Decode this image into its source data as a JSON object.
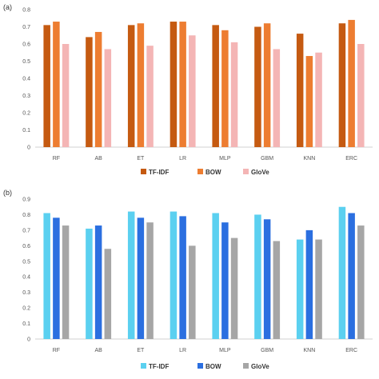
{
  "colors": {
    "a": [
      "#c55a11",
      "#ed7d31",
      "#f4b5b5"
    ],
    "b": [
      "#5bd0f0",
      "#2b6fe0",
      "#a6a6a6"
    ]
  },
  "chart_data": [
    {
      "type": "bar",
      "panel_label": "(a)",
      "categories": [
        "RF",
        "AB",
        "ET",
        "LR",
        "MLP",
        "GBM",
        "KNN",
        "ERC"
      ],
      "ylim": [
        0,
        0.8
      ],
      "yticks": [
        "0",
        "0.1",
        "0.2",
        "0.3",
        "0.4",
        "0.5",
        "0.6",
        "0.7",
        "0.8"
      ],
      "legend_position": "bottom",
      "grid": false,
      "series": [
        {
          "name": "TF-IDF",
          "values": [
            0.71,
            0.64,
            0.71,
            0.73,
            0.71,
            0.7,
            0.66,
            0.72
          ]
        },
        {
          "name": "BOW",
          "values": [
            0.73,
            0.67,
            0.72,
            0.73,
            0.68,
            0.72,
            0.53,
            0.74
          ]
        },
        {
          "name": "GloVe",
          "values": [
            0.6,
            0.57,
            0.59,
            0.65,
            0.61,
            0.57,
            0.55,
            0.6
          ]
        }
      ]
    },
    {
      "type": "bar",
      "panel_label": "(b)",
      "categories": [
        "RF",
        "AB",
        "ET",
        "LR",
        "MLP",
        "GBM",
        "KNN",
        "ERC"
      ],
      "ylim": [
        0,
        0.9
      ],
      "yticks": [
        "0",
        "0.1",
        "0.2",
        "0.3",
        "0.4",
        "0.5",
        "0.6",
        "0.7",
        "0.8",
        "0.9"
      ],
      "legend_position": "bottom",
      "grid": false,
      "series": [
        {
          "name": "TF-IDF",
          "values": [
            0.81,
            0.71,
            0.82,
            0.82,
            0.81,
            0.8,
            0.64,
            0.85
          ]
        },
        {
          "name": "BOW",
          "values": [
            0.78,
            0.73,
            0.78,
            0.79,
            0.75,
            0.77,
            0.7,
            0.81
          ]
        },
        {
          "name": "GloVe",
          "values": [
            0.73,
            0.58,
            0.75,
            0.6,
            0.65,
            0.63,
            0.64,
            0.73
          ]
        }
      ]
    }
  ]
}
